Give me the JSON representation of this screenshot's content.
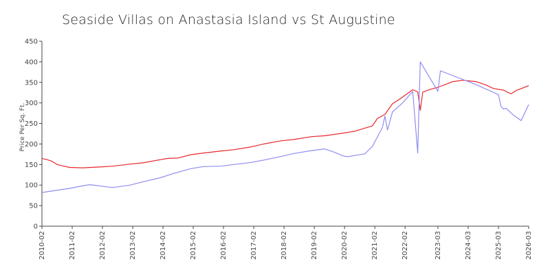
{
  "chart_data": {
    "type": "line",
    "title": "Seaside Villas on Anastasia Island vs St Augustine",
    "xlabel": "",
    "ylabel": "Price Per Sq. Ft.",
    "ylim": [
      0,
      450
    ],
    "yticks": [
      0,
      50,
      100,
      150,
      200,
      250,
      300,
      350,
      400,
      450
    ],
    "xticks": [
      "2010-02",
      "2011-02",
      "2012-02",
      "2013-02",
      "2014-02",
      "2015-02",
      "2016-02",
      "2017-02",
      "2018-02",
      "2019-02",
      "2020-02",
      "2021-02",
      "2022-02",
      "2023-03",
      "2024-03",
      "2025-03",
      "2026-03"
    ],
    "grid": false,
    "legend": "none",
    "series": [
      {
        "color": "#e8262a",
        "points": [
          [
            "2010-02",
            165
          ],
          [
            "2010-04",
            162
          ],
          [
            "2010-06",
            158
          ],
          [
            "2010-08",
            150
          ],
          [
            "2010-10",
            147
          ],
          [
            "2011-01",
            143
          ],
          [
            "2011-06",
            142
          ],
          [
            "2012-01",
            144
          ],
          [
            "2012-06",
            146
          ],
          [
            "2013-01",
            151
          ],
          [
            "2013-06",
            154
          ],
          [
            "2014-01",
            162
          ],
          [
            "2014-04",
            165
          ],
          [
            "2014-08",
            166
          ],
          [
            "2015-01",
            174
          ],
          [
            "2015-06",
            178
          ],
          [
            "2016-01",
            183
          ],
          [
            "2016-06",
            186
          ],
          [
            "2017-01",
            193
          ],
          [
            "2017-06",
            200
          ],
          [
            "2018-01",
            208
          ],
          [
            "2018-06",
            211
          ],
          [
            "2019-01",
            218
          ],
          [
            "2019-06",
            220
          ],
          [
            "2020-01",
            226
          ],
          [
            "2020-06",
            231
          ],
          [
            "2021-01",
            244
          ],
          [
            "2021-03",
            262
          ],
          [
            "2021-06",
            272
          ],
          [
            "2021-09",
            298
          ],
          [
            "2021-12",
            310
          ],
          [
            "2022-03",
            323
          ],
          [
            "2022-05",
            332
          ],
          [
            "2022-07",
            327
          ],
          [
            "2022-08",
            282
          ],
          [
            "2022-09",
            326
          ],
          [
            "2022-12",
            333
          ],
          [
            "2023-03",
            338
          ],
          [
            "2023-06",
            345
          ],
          [
            "2023-09",
            352
          ],
          [
            "2024-01",
            355
          ],
          [
            "2024-06",
            352
          ],
          [
            "2024-10",
            344
          ],
          [
            "2025-01",
            335
          ],
          [
            "2025-05",
            331
          ],
          [
            "2025-08",
            322
          ],
          [
            "2025-10",
            330
          ],
          [
            "2026-03",
            342
          ]
        ]
      },
      {
        "color": "#8f8cf0",
        "points": [
          [
            "2010-02",
            82
          ],
          [
            "2011-01",
            92
          ],
          [
            "2011-06",
            98
          ],
          [
            "2011-09",
            101
          ],
          [
            "2012-06",
            94
          ],
          [
            "2013-01",
            100
          ],
          [
            "2013-06",
            108
          ],
          [
            "2014-01",
            118
          ],
          [
            "2014-06",
            128
          ],
          [
            "2015-01",
            140
          ],
          [
            "2015-06",
            145
          ],
          [
            "2016-01",
            146
          ],
          [
            "2016-06",
            150
          ],
          [
            "2017-01",
            155
          ],
          [
            "2017-06",
            161
          ],
          [
            "2018-01",
            170
          ],
          [
            "2018-06",
            177
          ],
          [
            "2019-01",
            184
          ],
          [
            "2019-06",
            188
          ],
          [
            "2019-10",
            180
          ],
          [
            "2020-01",
            172
          ],
          [
            "2020-03",
            169
          ],
          [
            "2020-06",
            172
          ],
          [
            "2020-10",
            176
          ],
          [
            "2021-01",
            194
          ],
          [
            "2021-05",
            240
          ],
          [
            "2021-06",
            268
          ],
          [
            "2021-07",
            234
          ],
          [
            "2021-09",
            278
          ],
          [
            "2022-01",
            300
          ],
          [
            "2022-05",
            328
          ],
          [
            "2022-07",
            178
          ],
          [
            "2022-08",
            400
          ],
          [
            "2023-03",
            328
          ],
          [
            "2023-04",
            378
          ],
          [
            "2024-06",
            345
          ],
          [
            "2025-03",
            320
          ],
          [
            "2025-04",
            292
          ],
          [
            "2025-05",
            285
          ],
          [
            "2025-06",
            287
          ],
          [
            "2025-09",
            270
          ],
          [
            "2025-12",
            257
          ],
          [
            "2026-03",
            296
          ]
        ]
      }
    ]
  }
}
